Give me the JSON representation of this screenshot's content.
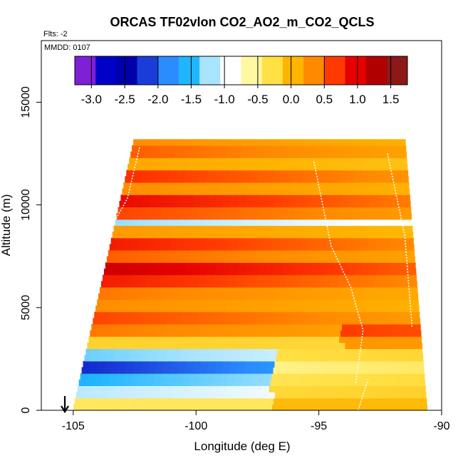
{
  "chart_data": {
    "type": "heatmap",
    "title": "ORCAS TF02vlon CO2_AO2_m_CO2_QCLS",
    "subtitle_left": "Flts: -2",
    "annotation": "MMDD: 0107",
    "xlabel": "Longitude (deg E)",
    "ylabel": "Altitude (m)",
    "xlim": [
      -106.3,
      -90
    ],
    "ylim": [
      0,
      18000
    ],
    "xticks": [
      -105,
      -100,
      -95,
      -90
    ],
    "xtick_labels": [
      "-105",
      "-100",
      "-95",
      "-90"
    ],
    "yticks": [
      0,
      5000,
      10000,
      15000
    ],
    "ytick_labels": [
      "0",
      "5000",
      "10000",
      "15000"
    ],
    "colorbar": {
      "range": [
        -3.25,
        1.75
      ],
      "ticks": [
        -3.0,
        -2.5,
        -2.0,
        -1.5,
        -1.0,
        -0.5,
        0.0,
        0.5,
        1.0,
        1.5
      ],
      "tick_labels": [
        "-3.0",
        "-2.5",
        "-2.0",
        "-1.5",
        "-1.0",
        "-0.5",
        "0.0",
        "0.5",
        "1.0",
        "1.5"
      ],
      "colors": [
        "#7f1fd6",
        "#0000c8",
        "#0000aa",
        "#1a3cd9",
        "#2a8cff",
        "#20b6ff",
        "#a9e4ff",
        "#ffffff",
        "#fff8a0",
        "#ffe045",
        "#ffb400",
        "#ff8a00",
        "#ff3a00",
        "#e60000",
        "#b00000",
        "#8c1818"
      ]
    },
    "domain": {
      "top_altitude": 13200,
      "bottom_altitude": 0,
      "left_longitude_bottom": -105.0,
      "left_longitude_top": -102.5,
      "right_longitude_bottom": -90.6,
      "right_longitude_top": -91.5
    },
    "layers": [
      {
        "alt_range": [
          0,
          600
        ],
        "value": -0.4
      },
      {
        "alt_range": [
          600,
          1200
        ],
        "value": -1.2
      },
      {
        "alt_range": [
          1200,
          1800
        ],
        "value": -1.6
      },
      {
        "alt_range": [
          1800,
          2400
        ],
        "value": -2.3
      },
      {
        "alt_range": [
          2400,
          3000
        ],
        "value": -1.4
      },
      {
        "alt_range": [
          3000,
          3600
        ],
        "value": -0.2
      },
      {
        "alt_range": [
          3600,
          4200
        ],
        "value": 0.4
      },
      {
        "alt_range": [
          4200,
          4800
        ],
        "value": 0.6
      },
      {
        "alt_range": [
          4800,
          5400
        ],
        "value": 0.3
      },
      {
        "alt_range": [
          5400,
          6000
        ],
        "value": 0.4
      },
      {
        "alt_range": [
          6000,
          6600
        ],
        "value": 0.8
      },
      {
        "alt_range": [
          6600,
          7200
        ],
        "value": 1.1
      },
      {
        "alt_range": [
          7200,
          7800
        ],
        "value": 0.5
      },
      {
        "alt_range": [
          7800,
          8400
        ],
        "value": 0.8
      },
      {
        "alt_range": [
          8400,
          9000
        ],
        "value": 0.2
      },
      {
        "alt_range": [
          9000,
          9300
        ],
        "value": -1.3
      },
      {
        "alt_range": [
          9300,
          9900
        ],
        "value": 0.6
      },
      {
        "alt_range": [
          9900,
          10500
        ],
        "value": 0.9
      },
      {
        "alt_range": [
          10500,
          11100
        ],
        "value": 0.3
      },
      {
        "alt_range": [
          11100,
          11700
        ],
        "value": 0.7
      },
      {
        "alt_range": [
          11700,
          12300
        ],
        "value": 0.1
      },
      {
        "alt_range": [
          12300,
          12800
        ],
        "value": 0.5
      },
      {
        "alt_range": [
          12800,
          13200
        ],
        "value": 0.3
      }
    ],
    "arrow_marker": {
      "longitude": -105,
      "label": ""
    }
  }
}
